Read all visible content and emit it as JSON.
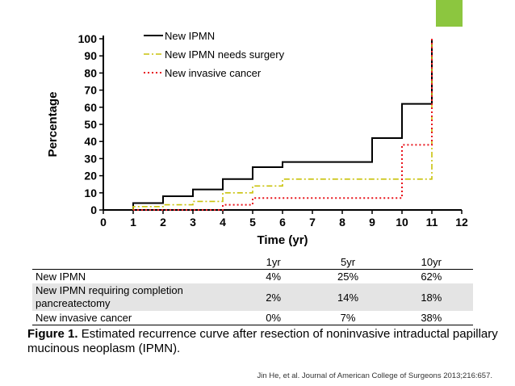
{
  "theme": {
    "accent_color": "#8cc63f"
  },
  "chart_data": {
    "type": "line",
    "step": true,
    "title": "",
    "xlabel": "Time (yr)",
    "ylabel": "Percentage",
    "xlim": [
      0,
      12
    ],
    "ylim": [
      0,
      100
    ],
    "xticks": [
      0,
      1,
      2,
      3,
      4,
      5,
      6,
      7,
      8,
      9,
      10,
      11,
      12
    ],
    "yticks": [
      0,
      10,
      20,
      30,
      40,
      50,
      60,
      70,
      80,
      90,
      100
    ],
    "grid": false,
    "legend_position": "top-left",
    "series": [
      {
        "name": "New IPMN",
        "color": "#000000",
        "style": "solid",
        "x": [
          1,
          1,
          2,
          2,
          3,
          3,
          4,
          4,
          5,
          5,
          6,
          6,
          9,
          9,
          10,
          10,
          11,
          11
        ],
        "y": [
          0,
          4,
          4,
          8,
          8,
          12,
          12,
          18,
          18,
          25,
          25,
          28,
          28,
          42,
          42,
          62,
          62,
          100
        ]
      },
      {
        "name": "New IPMN needs surgery",
        "color": "#c9c20c",
        "style": "dashdot",
        "x": [
          1,
          1,
          2,
          2,
          3,
          3,
          4,
          4,
          5,
          5,
          6,
          6,
          11,
          11
        ],
        "y": [
          0,
          2,
          2,
          3,
          3,
          5,
          5,
          10,
          10,
          14,
          14,
          18,
          18,
          100
        ]
      },
      {
        "name": "New invasive cancer",
        "color": "#e8141c",
        "style": "dotted",
        "x": [
          1,
          1,
          4,
          4,
          5,
          5,
          10,
          10,
          11,
          11
        ],
        "y": [
          0,
          0,
          0,
          3,
          3,
          7,
          7,
          38,
          38,
          100
        ]
      }
    ]
  },
  "table": {
    "headers": [
      "",
      "1yr",
      "5yr",
      "10yr"
    ],
    "rows": [
      {
        "label": "New IPMN",
        "values": [
          "4%",
          "25%",
          "62%"
        ]
      },
      {
        "label": "New IPMN requiring completion pancreatectomy",
        "values": [
          "2%",
          "14%",
          "18%"
        ]
      },
      {
        "label": "New invasive cancer",
        "values": [
          "0%",
          "7%",
          "38%"
        ]
      }
    ]
  },
  "caption": {
    "label": "Figure 1.",
    "text": "Estimated recurrence curve after resection of noninvasive intraductal papillary mucinous neoplasm (IPMN)."
  },
  "citation": "Jin He, et al. Journal of American College of Surgeons 2013;216:657."
}
